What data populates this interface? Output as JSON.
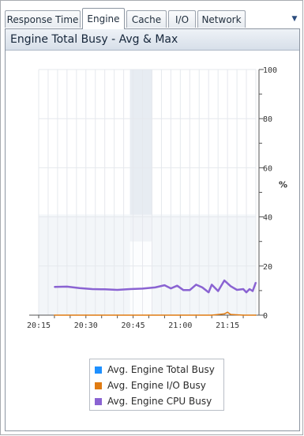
{
  "tabs": [
    {
      "label": "Response Time",
      "active": false
    },
    {
      "label": "Engine",
      "active": true
    },
    {
      "label": "Cache",
      "active": false
    },
    {
      "label": "I/O",
      "active": false
    },
    {
      "label": "Network",
      "active": false
    }
  ],
  "tab_overflow_icon": "dropdown-arrow-icon",
  "panel": {
    "title": "Engine Total Busy - Avg & Max"
  },
  "colors": {
    "total_busy": "#1e90ff",
    "io_busy": "#e07b12",
    "cpu_busy": "#8a63d2"
  },
  "chart_data": {
    "type": "line",
    "title": "Engine Total Busy - Avg & Max",
    "xlabel": "",
    "ylabel": "%",
    "y_axis_side": "right",
    "ylim": [
      0,
      100
    ],
    "yticks": [
      "0",
      "20",
      "40",
      "60",
      "80",
      "100"
    ],
    "xticks": [
      "20:15",
      "20:30",
      "20:45",
      "21:00",
      "21:15"
    ],
    "x_minutes_range": [
      "20:15",
      "21:24"
    ],
    "grid": true,
    "legend_position": "bottom",
    "series": [
      {
        "name": "Avg. Engine Total Busy",
        "color": "#1e90ff",
        "points": []
      },
      {
        "name": "Avg. Engine I/O Busy",
        "color": "#e07b12",
        "points": [
          [
            "20:20",
            0
          ],
          [
            "20:30",
            0
          ],
          [
            "20:40",
            0
          ],
          [
            "20:50",
            0
          ],
          [
            "21:00",
            0
          ],
          [
            "21:05",
            0
          ],
          [
            "21:10",
            0
          ],
          [
            "21:14",
            0.5
          ],
          [
            "21:15",
            1.2
          ],
          [
            "21:16",
            0.3
          ],
          [
            "21:20",
            0
          ],
          [
            "21:24",
            0
          ]
        ]
      },
      {
        "name": "Avg. Engine CPU Busy",
        "color": "#8a63d2",
        "points": [
          [
            "20:20",
            11.5
          ],
          [
            "20:24",
            11.6
          ],
          [
            "20:28",
            11
          ],
          [
            "20:32",
            10.6
          ],
          [
            "20:36",
            10.5
          ],
          [
            "20:40",
            10.3
          ],
          [
            "20:44",
            10.6
          ],
          [
            "20:48",
            10.8
          ],
          [
            "20:52",
            11.3
          ],
          [
            "20:55",
            12.2
          ],
          [
            "20:57",
            10.9
          ],
          [
            "20:59",
            12.0
          ],
          [
            "21:01",
            10.2
          ],
          [
            "21:03",
            10.2
          ],
          [
            "21:05",
            12.4
          ],
          [
            "21:07",
            11.3
          ],
          [
            "21:09",
            9.3
          ],
          [
            "21:10",
            12.4
          ],
          [
            "21:12",
            9.8
          ],
          [
            "21:14",
            14.1
          ],
          [
            "21:16",
            11.8
          ],
          [
            "21:18",
            10.3
          ],
          [
            "21:20",
            10.6
          ],
          [
            "21:21",
            9.3
          ],
          [
            "21:22",
            10.6
          ],
          [
            "21:23",
            9.8
          ],
          [
            "21:24",
            13.3
          ]
        ]
      }
    ],
    "shaded_regions": [
      {
        "from": "20:44",
        "to": "20:51",
        "ymin": 0,
        "ymax": 100
      },
      {
        "from": "20:15",
        "to": "21:24",
        "ymin": 0,
        "ymax": 41
      }
    ]
  }
}
